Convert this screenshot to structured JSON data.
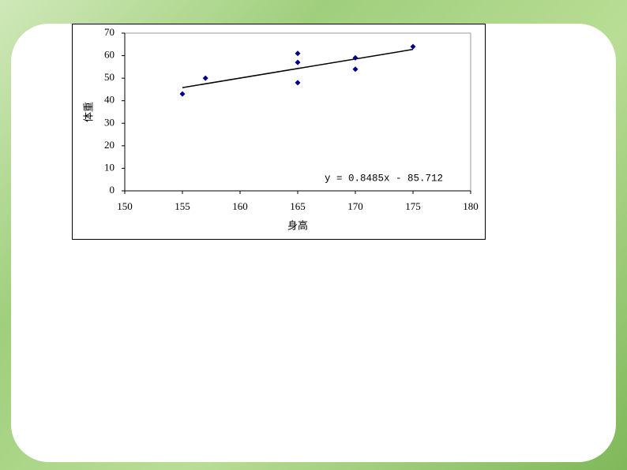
{
  "chart_data": {
    "type": "scatter",
    "x_label": "身高",
    "y_label": "体重",
    "series": [
      {
        "name": null,
        "color": "#00008b",
        "x": [
          155,
          157,
          165,
          165,
          165,
          170,
          170,
          175
        ],
        "values": [
          43,
          50,
          61,
          57,
          48,
          59,
          54,
          64
        ]
      }
    ],
    "trendline": {
      "slope": 0.8485,
      "intercept": -85.712,
      "x": [
        155,
        175
      ],
      "color": "#000000"
    },
    "annotation": "y = 0.8485x - 85.712",
    "xlim": [
      150,
      180
    ],
    "xticks": [
      150,
      155,
      160,
      165,
      170,
      175,
      180
    ],
    "ylim": [
      0,
      70
    ],
    "yticks": [
      0,
      10,
      20,
      30,
      40,
      50,
      60,
      70
    ]
  }
}
